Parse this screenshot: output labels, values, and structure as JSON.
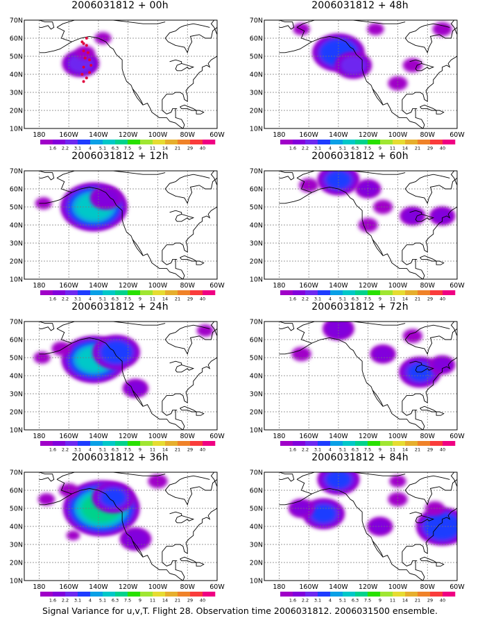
{
  "caption": "Signal Variance for u,v,T. Flight 28. Observation time 2006031812. 2006031500 ensemble.",
  "chart_data": [
    {
      "type": "heatmap",
      "title": "2006031812 + 00h",
      "lead_hours": 0,
      "blobs": [
        {
          "lon": -152,
          "lat": 46,
          "var": 3.5
        },
        {
          "lon": -149,
          "lat": 52,
          "var": 2.0
        },
        {
          "lon": -137,
          "lat": 60,
          "var": 1.8
        }
      ],
      "observation_points": [
        [
          -150,
          57
        ],
        [
          -148,
          56
        ],
        [
          -147,
          52
        ],
        [
          -146,
          48
        ],
        [
          -145,
          45
        ],
        [
          -146,
          41
        ],
        [
          -148,
          38
        ],
        [
          -150,
          36
        ],
        [
          -151,
          40
        ],
        [
          -150,
          44
        ],
        [
          -149,
          49
        ],
        [
          -150,
          53
        ],
        [
          -148,
          60
        ],
        [
          -151,
          58
        ]
      ]
    },
    {
      "type": "heatmap",
      "title": "2006031812 + 48h",
      "lead_hours": 48,
      "blobs": [
        {
          "lon": -140,
          "lat": 52,
          "var": 5.0
        },
        {
          "lon": -130,
          "lat": 45,
          "var": 3.5
        },
        {
          "lon": -165,
          "lat": 65,
          "var": 1.8
        },
        {
          "lon": -115,
          "lat": 65,
          "var": 1.8
        },
        {
          "lon": -70,
          "lat": 65,
          "var": 2.0
        },
        {
          "lon": -90,
          "lat": 45,
          "var": 2.0
        },
        {
          "lon": -100,
          "lat": 35,
          "var": 2.0
        }
      ]
    },
    {
      "type": "heatmap",
      "title": "2006031812 + 12h",
      "lead_hours": 12,
      "blobs": [
        {
          "lon": -143,
          "lat": 50,
          "var": 6.5
        },
        {
          "lon": -135,
          "lat": 55,
          "var": 3.0
        },
        {
          "lon": -177,
          "lat": 52,
          "var": 1.8
        }
      ]
    },
    {
      "type": "heatmap",
      "title": "2006031812 + 60h",
      "lead_hours": 60,
      "blobs": [
        {
          "lon": -140,
          "lat": 65,
          "var": 4.0
        },
        {
          "lon": -160,
          "lat": 62,
          "var": 2.0
        },
        {
          "lon": -120,
          "lat": 60,
          "var": 2.5
        },
        {
          "lon": -110,
          "lat": 50,
          "var": 2.0
        },
        {
          "lon": -90,
          "lat": 45,
          "var": 2.5
        },
        {
          "lon": -70,
          "lat": 45,
          "var": 2.5
        },
        {
          "lon": -120,
          "lat": 40,
          "var": 2.0
        }
      ]
    },
    {
      "type": "heatmap",
      "title": "2006031812 + 24h",
      "lead_hours": 24,
      "blobs": [
        {
          "lon": -143,
          "lat": 49,
          "var": 6.3
        },
        {
          "lon": -128,
          "lat": 53,
          "var": 4.5
        },
        {
          "lon": -165,
          "lat": 55,
          "var": 2.0
        },
        {
          "lon": -178,
          "lat": 50,
          "var": 1.8
        },
        {
          "lon": -115,
          "lat": 33,
          "var": 2.5
        },
        {
          "lon": -68,
          "lat": 65,
          "var": 1.8
        }
      ]
    },
    {
      "type": "heatmap",
      "title": "2006031812 + 72h",
      "lead_hours": 72,
      "blobs": [
        {
          "lon": -140,
          "lat": 66,
          "var": 3.0
        },
        {
          "lon": -165,
          "lat": 52,
          "var": 2.0
        },
        {
          "lon": -110,
          "lat": 52,
          "var": 2.5
        },
        {
          "lon": -85,
          "lat": 42,
          "var": 4.0
        },
        {
          "lon": -70,
          "lat": 46,
          "var": 2.5
        },
        {
          "lon": -90,
          "lat": 62,
          "var": 2.0
        }
      ]
    },
    {
      "type": "heatmap",
      "title": "2006031812 + 36h",
      "lead_hours": 36,
      "blobs": [
        {
          "lon": -138,
          "lat": 50,
          "var": 7.5
        },
        {
          "lon": -130,
          "lat": 56,
          "var": 4.0
        },
        {
          "lon": -160,
          "lat": 60,
          "var": 2.0
        },
        {
          "lon": -100,
          "lat": 65,
          "var": 2.0
        },
        {
          "lon": -115,
          "lat": 33,
          "var": 3.0
        },
        {
          "lon": -175,
          "lat": 55,
          "var": 1.8
        },
        {
          "lon": -157,
          "lat": 35,
          "var": 1.6
        }
      ]
    },
    {
      "type": "heatmap",
      "title": "2006031812 + 84h",
      "lead_hours": 84,
      "blobs": [
        {
          "lon": -140,
          "lat": 66,
          "var": 4.0
        },
        {
          "lon": -150,
          "lat": 47,
          "var": 4.0
        },
        {
          "lon": -165,
          "lat": 50,
          "var": 2.5
        },
        {
          "lon": -100,
          "lat": 55,
          "var": 2.0
        },
        {
          "lon": -112,
          "lat": 40,
          "var": 2.5
        },
        {
          "lon": -70,
          "lat": 40,
          "var": 5.0
        },
        {
          "lon": -75,
          "lat": 50,
          "var": 2.0
        },
        {
          "lon": -100,
          "lat": 65,
          "var": 1.8
        }
      ]
    }
  ],
  "axes": {
    "lon_range": [
      -190,
      -60
    ],
    "lat_range": [
      10,
      70
    ],
    "x_ticks": [
      "180",
      "160W",
      "140W",
      "120W",
      "100W",
      "80W",
      "60W"
    ],
    "y_ticks": [
      "70N",
      "60N",
      "50N",
      "40N",
      "30N",
      "20N",
      "10N"
    ],
    "grid": true
  },
  "colorbar": {
    "levels": [
      "1.6",
      "2.2",
      "3.1",
      "4",
      "5.1",
      "6.3",
      "7.5",
      "9",
      "11",
      "14",
      "21",
      "29",
      "40"
    ],
    "colors": [
      "#a000c8",
      "#8200dc",
      "#6e28f0",
      "#1e3cff",
      "#0aa0e6",
      "#00c8c8",
      "#00d28c",
      "#28e000",
      "#a0e632",
      "#e6dc32",
      "#e6af2d",
      "#f08228",
      "#fa3c3c",
      "#f00082"
    ]
  }
}
